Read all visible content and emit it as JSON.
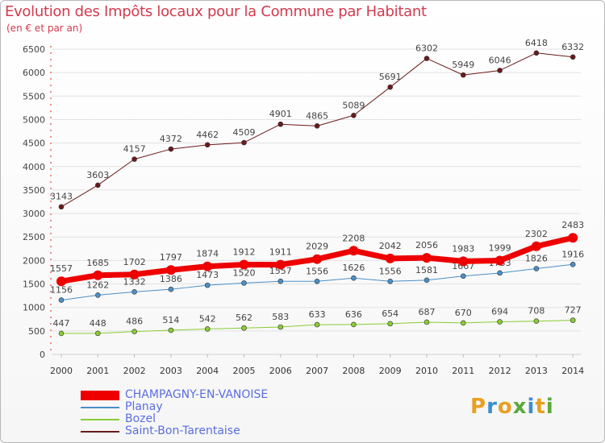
{
  "header": {
    "title": "Evolution des Impôts locaux pour la Commune par Habitant",
    "subtitle": "(en € et par an)"
  },
  "chart_data": {
    "type": "line",
    "title": "Evolution des Impôts locaux pour la Commune par Habitant",
    "subtitle": "(en € et par an)",
    "xlabel": "",
    "ylabel": "",
    "ylim": [
      0,
      6500
    ],
    "yticks": [
      0,
      500,
      1000,
      1500,
      2000,
      2500,
      3000,
      3500,
      4000,
      4500,
      5000,
      5500,
      6000,
      6500
    ],
    "grid": true,
    "legend_position": "bottom-left",
    "categories": [
      "2000",
      "2001",
      "2002",
      "2003",
      "2004",
      "2005",
      "2006",
      "2007",
      "2008",
      "2009",
      "2010",
      "2011",
      "2012",
      "2013",
      "2014"
    ],
    "series": [
      {
        "name": "Saint-Bon-Tarentaise",
        "color": "#6b1a1a",
        "width": 1,
        "values": [
          3143,
          3603,
          4157,
          4372,
          4462,
          4509,
          4901,
          4865,
          5089,
          5691,
          6302,
          5949,
          6046,
          6418,
          6332
        ]
      },
      {
        "name": "Planay",
        "color": "#4a8fc7",
        "width": 1,
        "values": [
          1156,
          1262,
          1332,
          1386,
          1473,
          1520,
          1557,
          1556,
          1626,
          1556,
          1581,
          1667,
          1733,
          1826,
          1916
        ],
        "labels": [
          "1156",
          "1262",
          "1332",
          "1386",
          "1473",
          "1520",
          "1557",
          "1556",
          "1626",
          "1556",
          "1581",
          "1667",
          "1733",
          "1826",
          "1916"
        ]
      },
      {
        "name": "Bozel",
        "color": "#88cc33",
        "width": 1,
        "values": [
          447,
          448,
          486,
          514,
          542,
          562,
          583,
          633,
          636,
          654,
          687,
          670,
          694,
          708,
          727
        ]
      },
      {
        "name": "CHAMPAGNY-EN-VANOISE",
        "color": "#ee0000",
        "width": 7,
        "values": [
          1557,
          1685,
          1702,
          1797,
          1874,
          1912,
          1911,
          2029,
          2208,
          2042,
          2056,
          1983,
          1999,
          2302,
          2483
        ]
      }
    ]
  },
  "legend": [
    {
      "label": "CHAMPAGNY-EN-VANOISE",
      "color": "#ee0000",
      "thick": true
    },
    {
      "label": "Planay",
      "color": "#4a8fc7",
      "thick": false
    },
    {
      "label": "Bozel",
      "color": "#88cc33",
      "thick": false
    },
    {
      "label": "Saint-Bon-Tarentaise",
      "color": "#6b1a1a",
      "thick": false
    }
  ],
  "logo": {
    "text": "Proxiti",
    "colors": [
      "#e8a020",
      "#3a8fd0",
      "#e8a020",
      "#5aa83a",
      "#3a8fd0",
      "#e8a020",
      "#5aa83a"
    ]
  }
}
